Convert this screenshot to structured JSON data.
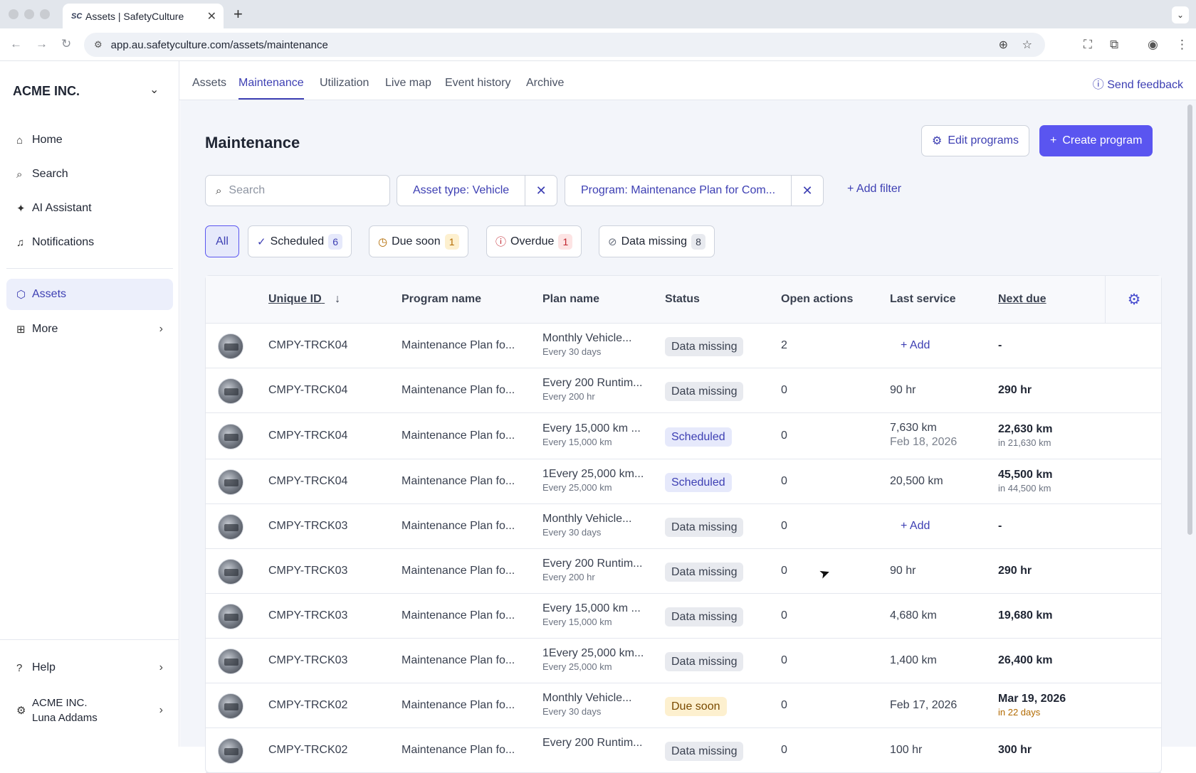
{
  "browser": {
    "tab_favicon": "SC",
    "tab_title": "Assets | SafetyCulture",
    "tab_close": "✕",
    "new_tab": "+",
    "url": "app.au.safetyculture.com/assets/maintenance"
  },
  "sidebar": {
    "org_name": "ACME INC.",
    "items": [
      {
        "label": "Home",
        "icon": "home-icon"
      },
      {
        "label": "Search",
        "icon": "search-icon"
      },
      {
        "label": "AI Assistant",
        "icon": "sparkle-icon"
      },
      {
        "label": "Notifications",
        "icon": "bell-icon"
      },
      {
        "label": "Assets",
        "icon": "asset-cube-icon"
      },
      {
        "label": "More",
        "icon": "grid-icon"
      }
    ],
    "help_label": "Help",
    "account_org": "ACME INC.",
    "account_user": "Luna Addams"
  },
  "top_tabs": [
    "Assets",
    "Maintenance",
    "Utilization",
    "Live map",
    "Event history",
    "Archive"
  ],
  "feedback_label": "Send feedback",
  "page": {
    "title": "Maintenance",
    "edit_programs": "Edit programs",
    "create_program": "Create program"
  },
  "filters": {
    "search_placeholder": "Search",
    "chips": [
      "Asset type: Vehicle",
      "Program: Maintenance Plan for Com..."
    ],
    "add_filter": "Add filter"
  },
  "segments": [
    {
      "label": "All"
    },
    {
      "label": "Scheduled",
      "count": "6",
      "color": "#3d3fb3",
      "bg": "#e6e9fb"
    },
    {
      "label": "Due soon",
      "count": "1",
      "color": "#b26a00",
      "bg": "#fdf0cf"
    },
    {
      "label": "Overdue",
      "count": "1",
      "color": "#c0232c",
      "bg": "#fde4e4"
    },
    {
      "label": "Data missing",
      "count": "8",
      "color": "#3a4150",
      "bg": "#e8eaef"
    }
  ],
  "table": {
    "headers": {
      "unique_id": "Unique ID",
      "program_name": "Program name",
      "plan_name": "Plan name",
      "status": "Status",
      "open_actions": "Open actions",
      "last_service": "Last service",
      "next_due": "Next due"
    },
    "rows": [
      {
        "id": "CMPY-TRCK04",
        "program": "Maintenance Plan fo...",
        "plan": "Monthly Vehicle...",
        "plan_sub": "Every 30 days",
        "status": "Data missing",
        "open": "2",
        "last": "Add",
        "last_sub": "",
        "next": "-",
        "next_sub": ""
      },
      {
        "id": "CMPY-TRCK04",
        "program": "Maintenance Plan fo...",
        "plan": "Every 200 Runtim...",
        "plan_sub": "Every 200 hr",
        "status": "Data missing",
        "open": "0",
        "last": "90 hr",
        "last_sub": "",
        "next": "290 hr",
        "next_sub": ""
      },
      {
        "id": "CMPY-TRCK04",
        "program": "Maintenance Plan fo...",
        "plan": "Every 15,000 km ...",
        "plan_sub": "Every 15,000 km",
        "status": "Scheduled",
        "open": "0",
        "last": "7,630 km",
        "last_sub": "Feb 18, 2026",
        "next": "22,630 km",
        "next_sub": "in 21,630 km"
      },
      {
        "id": "CMPY-TRCK04",
        "program": "Maintenance Plan fo...",
        "plan": "1Every 25,000 km...",
        "plan_sub": "Every 25,000 km",
        "status": "Scheduled",
        "open": "0",
        "last": "20,500 km",
        "last_sub": "",
        "next": "45,500 km",
        "next_sub": "in 44,500 km"
      },
      {
        "id": "CMPY-TRCK03",
        "program": "Maintenance Plan fo...",
        "plan": "Monthly Vehicle...",
        "plan_sub": "Every 30 days",
        "status": "Data missing",
        "open": "0",
        "last": "Add",
        "last_sub": "",
        "next": "-",
        "next_sub": ""
      },
      {
        "id": "CMPY-TRCK03",
        "program": "Maintenance Plan fo...",
        "plan": "Every 200 Runtim...",
        "plan_sub": "Every 200 hr",
        "status": "Data missing",
        "open": "0",
        "last": "90 hr",
        "last_sub": "",
        "next": "290 hr",
        "next_sub": ""
      },
      {
        "id": "CMPY-TRCK03",
        "program": "Maintenance Plan fo...",
        "plan": "Every 15,000 km ...",
        "plan_sub": "Every 15,000 km",
        "status": "Data missing",
        "open": "0",
        "last": "4,680 km",
        "last_sub": "",
        "next": "19,680 km",
        "next_sub": ""
      },
      {
        "id": "CMPY-TRCK03",
        "program": "Maintenance Plan fo...",
        "plan": "1Every 25,000 km...",
        "plan_sub": "Every 25,000 km",
        "status": "Data missing",
        "open": "0",
        "last": "1,400 km",
        "last_sub": "",
        "next": "26,400 km",
        "next_sub": ""
      },
      {
        "id": "CMPY-TRCK02",
        "program": "Maintenance Plan fo...",
        "plan": "Monthly Vehicle...",
        "plan_sub": "Every 30 days",
        "status": "Due soon",
        "open": "0",
        "last": "Feb 17, 2026",
        "last_sub": "",
        "next": "Mar 19, 2026",
        "next_sub": "in 22 days"
      },
      {
        "id": "CMPY-TRCK02",
        "program": "Maintenance Plan fo...",
        "plan": "Every 200 Runtim...",
        "plan_sub": "",
        "status": "Data missing",
        "open": "0",
        "last": "100 hr",
        "last_sub": "",
        "next": "300 hr",
        "next_sub": ""
      }
    ]
  }
}
